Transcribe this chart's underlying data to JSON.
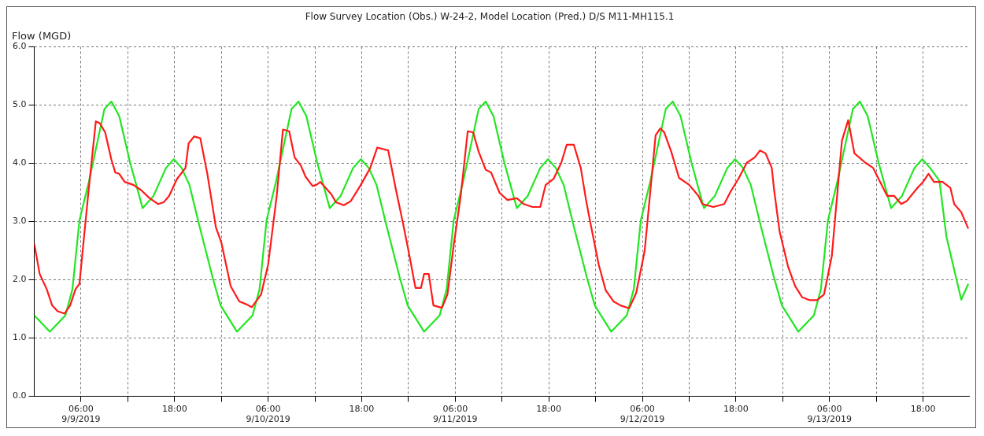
{
  "chart_data": {
    "type": "line",
    "title": "Flow Survey Location (Obs.) W-24-2, Model Location (Pred.) D/S M11-MH115.1",
    "ylabel": "Flow (MGD)",
    "xlim": [
      "2019-09-09T00:00",
      "2019-09-13T23:54"
    ],
    "xticks": [
      {
        "value": "2019-09-09T06:00",
        "label": "06:00\n9/9/2019"
      },
      {
        "value": "2019-09-09T12:00",
        "label": null
      },
      {
        "value": "2019-09-09T18:00",
        "label": "18:00"
      },
      {
        "value": "2019-09-10T00:00",
        "label": null
      },
      {
        "value": "2019-09-10T06:00",
        "label": "06:00\n9/10/2019"
      },
      {
        "value": "2019-09-10T12:00",
        "label": null
      },
      {
        "value": "2019-09-10T18:00",
        "label": "18:00"
      },
      {
        "value": "2019-09-11T00:00",
        "label": null
      },
      {
        "value": "2019-09-11T06:00",
        "label": "06:00\n9/11/2019"
      },
      {
        "value": "2019-09-11T12:00",
        "label": null
      },
      {
        "value": "2019-09-11T18:00",
        "label": "18:00"
      },
      {
        "value": "2019-09-12T00:00",
        "label": null
      },
      {
        "value": "2019-09-12T06:00",
        "label": "06:00\n9/12/2019"
      },
      {
        "value": "2019-09-12T12:00",
        "label": null
      },
      {
        "value": "2019-09-12T18:00",
        "label": "18:00"
      },
      {
        "value": "2019-09-13T00:00",
        "label": null
      },
      {
        "value": "2019-09-13T06:00",
        "label": "06:00\n9/13/2019"
      },
      {
        "value": "2019-09-13T12:00",
        "label": null
      },
      {
        "value": "2019-09-13T18:00",
        "label": "18:00"
      }
    ],
    "ylim": [
      0,
      6
    ],
    "yticks": [
      {
        "value": 0,
        "label": "0.0"
      },
      {
        "value": 1,
        "label": "1.0"
      },
      {
        "value": 2,
        "label": "2.0"
      },
      {
        "value": 3,
        "label": "3.0"
      },
      {
        "value": 4,
        "label": "4.0"
      },
      {
        "value": 5,
        "label": "5.0"
      },
      {
        "value": 6,
        "label": "6.0"
      }
    ],
    "grid": true,
    "legend": false,
    "marker": "none",
    "line_style": "solid",
    "series": [
      {
        "color": "#ff1a1a",
        "x": [
          "2019-09-09T00:00",
          "2019-09-09T00:42",
          "2019-09-09T01:36",
          "2019-09-09T02:18",
          "2019-09-09T03:00",
          "2019-09-09T03:54",
          "2019-09-09T04:36",
          "2019-09-09T05:18",
          "2019-09-09T05:48",
          "2019-09-09T06:54",
          "2019-09-09T07:54",
          "2019-09-09T08:24",
          "2019-09-09T09:06",
          "2019-09-09T09:54",
          "2019-09-09T10:24",
          "2019-09-09T10:54",
          "2019-09-09T11:36",
          "2019-09-09T12:42",
          "2019-09-09T13:42",
          "2019-09-09T14:48",
          "2019-09-09T15:54",
          "2019-09-09T16:36",
          "2019-09-09T17:18",
          "2019-09-09T18:18",
          "2019-09-09T19:24",
          "2019-09-09T19:48",
          "2019-09-09T20:30",
          "2019-09-09T21:18",
          "2019-09-09T22:12",
          "2019-09-09T23:18",
          "2019-09-10T00:00",
          "2019-09-10T01:12",
          "2019-09-10T02:18",
          "2019-09-10T03:12",
          "2019-09-10T03:54",
          "2019-09-10T05:06",
          "2019-09-10T06:00",
          "2019-09-10T07:06",
          "2019-09-10T07:54",
          "2019-09-10T08:42",
          "2019-09-10T09:24",
          "2019-09-10T10:12",
          "2019-09-10T10:48",
          "2019-09-10T11:42",
          "2019-09-10T12:12",
          "2019-09-10T12:42",
          "2019-09-10T14:06",
          "2019-09-10T14:42",
          "2019-09-10T15:42",
          "2019-09-10T16:36",
          "2019-09-10T17:48",
          "2019-09-10T19:06",
          "2019-09-10T20:00",
          "2019-09-10T21:24",
          "2019-09-10T22:24",
          "2019-09-10T23:18",
          "2019-09-11T00:00",
          "2019-09-11T00:54",
          "2019-09-11T01:36",
          "2019-09-11T02:00",
          "2019-09-11T02:36",
          "2019-09-11T03:12",
          "2019-09-11T04:18",
          "2019-09-11T05:00",
          "2019-09-11T05:48",
          "2019-09-11T06:42",
          "2019-09-11T07:36",
          "2019-09-11T08:18",
          "2019-09-11T09:00",
          "2019-09-11T09:54",
          "2019-09-11T10:36",
          "2019-09-11T11:42",
          "2019-09-11T12:42",
          "2019-09-11T13:54",
          "2019-09-11T14:48",
          "2019-09-11T15:54",
          "2019-09-11T16:54",
          "2019-09-11T17:36",
          "2019-09-11T18:36",
          "2019-09-11T19:36",
          "2019-09-11T20:18",
          "2019-09-11T21:12",
          "2019-09-11T22:06",
          "2019-09-11T22:48",
          "2019-09-11T23:18",
          "2019-09-12T00:24",
          "2019-09-12T01:18",
          "2019-09-12T02:18",
          "2019-09-12T03:12",
          "2019-09-12T04:18",
          "2019-09-12T05:12",
          "2019-09-12T06:18",
          "2019-09-12T07:42",
          "2019-09-12T08:18",
          "2019-09-12T08:48",
          "2019-09-12T09:42",
          "2019-09-12T10:42",
          "2019-09-12T12:00",
          "2019-09-12T13:12",
          "2019-09-12T13:42",
          "2019-09-12T15:06",
          "2019-09-12T16:30",
          "2019-09-12T17:18",
          "2019-09-12T18:18",
          "2019-09-12T19:24",
          "2019-09-12T20:24",
          "2019-09-12T21:06",
          "2019-09-12T21:48",
          "2019-09-12T22:36",
          "2019-09-12T22:54",
          "2019-09-12T23:36",
          "2019-09-13T00:42",
          "2019-09-13T01:36",
          "2019-09-13T02:30",
          "2019-09-13T03:30",
          "2019-09-13T04:24",
          "2019-09-13T05:18",
          "2019-09-13T06:18",
          "2019-09-13T07:36",
          "2019-09-13T08:24",
          "2019-09-13T09:12",
          "2019-09-13T10:36",
          "2019-09-13T11:36",
          "2019-09-13T12:30",
          "2019-09-13T13:24",
          "2019-09-13T14:18",
          "2019-09-13T15:12",
          "2019-09-13T15:54",
          "2019-09-13T17:18",
          "2019-09-13T18:00",
          "2019-09-13T18:42",
          "2019-09-13T19:24",
          "2019-09-13T20:30",
          "2019-09-13T21:30",
          "2019-09-13T22:00",
          "2019-09-13T22:54",
          "2019-09-13T23:48"
        ],
        "values": [
          2.62,
          2.1,
          1.84,
          1.56,
          1.46,
          1.42,
          1.56,
          1.84,
          1.93,
          3.44,
          4.72,
          4.69,
          4.53,
          4.06,
          3.84,
          3.82,
          3.68,
          3.63,
          3.54,
          3.4,
          3.3,
          3.33,
          3.44,
          3.73,
          3.92,
          4.34,
          4.46,
          4.43,
          3.82,
          2.9,
          2.64,
          1.89,
          1.63,
          1.58,
          1.53,
          1.75,
          2.26,
          3.44,
          4.58,
          4.55,
          4.1,
          3.96,
          3.77,
          3.61,
          3.63,
          3.68,
          3.47,
          3.33,
          3.28,
          3.35,
          3.61,
          3.92,
          4.27,
          4.22,
          3.54,
          2.97,
          2.5,
          1.86,
          1.86,
          2.1,
          2.1,
          1.56,
          1.52,
          1.75,
          2.59,
          3.44,
          4.55,
          4.53,
          4.2,
          3.89,
          3.84,
          3.49,
          3.37,
          3.4,
          3.3,
          3.25,
          3.25,
          3.63,
          3.73,
          4.01,
          4.32,
          4.32,
          3.92,
          3.35,
          3.0,
          2.26,
          1.82,
          1.63,
          1.56,
          1.51,
          1.77,
          2.5,
          4.48,
          4.6,
          4.53,
          4.2,
          3.75,
          3.63,
          3.44,
          3.3,
          3.25,
          3.3,
          3.51,
          3.73,
          4.01,
          4.1,
          4.22,
          4.17,
          3.92,
          3.54,
          2.83,
          2.22,
          1.89,
          1.7,
          1.65,
          1.65,
          1.75,
          2.41,
          4.39,
          4.74,
          4.17,
          4.01,
          3.92,
          3.68,
          3.44,
          3.44,
          3.3,
          3.35,
          3.58,
          3.68,
          3.82,
          3.68,
          3.68,
          3.58,
          3.3,
          3.16,
          2.88
        ]
      },
      {
        "color": "#22e622",
        "x": [
          "2019-09-09T00:00",
          "2019-09-09T02:00",
          "2019-09-09T04:00",
          "2019-09-09T04:54",
          "2019-09-09T05:48",
          "2019-09-09T07:00",
          "2019-09-09T09:00",
          "2019-09-09T09:54",
          "2019-09-09T10:54",
          "2019-09-09T12:18",
          "2019-09-09T13:54",
          "2019-09-09T15:18",
          "2019-09-09T16:54",
          "2019-09-09T17:54",
          "2019-09-09T18:54",
          "2019-09-09T19:54",
          "2019-09-09T21:12",
          "2019-09-09T22:54",
          "2019-09-09T23:54",
          "2019-09-10T02:00",
          "2019-09-10T04:00",
          "2019-09-10T04:54",
          "2019-09-10T05:48",
          "2019-09-10T07:00",
          "2019-09-10T09:00",
          "2019-09-10T09:54",
          "2019-09-10T10:54",
          "2019-09-10T12:18",
          "2019-09-10T13:54",
          "2019-09-10T15:18",
          "2019-09-10T16:54",
          "2019-09-10T17:54",
          "2019-09-10T18:54",
          "2019-09-10T19:54",
          "2019-09-10T21:12",
          "2019-09-10T22:54",
          "2019-09-10T23:54",
          "2019-09-11T02:00",
          "2019-09-11T04:00",
          "2019-09-11T04:54",
          "2019-09-11T05:48",
          "2019-09-11T07:00",
          "2019-09-11T09:00",
          "2019-09-11T09:54",
          "2019-09-11T10:54",
          "2019-09-11T12:18",
          "2019-09-11T13:54",
          "2019-09-11T15:18",
          "2019-09-11T16:54",
          "2019-09-11T17:54",
          "2019-09-11T18:54",
          "2019-09-11T19:54",
          "2019-09-11T21:12",
          "2019-09-11T22:54",
          "2019-09-11T23:54",
          "2019-09-12T02:00",
          "2019-09-12T04:00",
          "2019-09-12T04:54",
          "2019-09-12T05:48",
          "2019-09-12T07:00",
          "2019-09-12T09:00",
          "2019-09-12T09:54",
          "2019-09-12T10:54",
          "2019-09-12T12:18",
          "2019-09-12T13:54",
          "2019-09-12T15:18",
          "2019-09-12T16:54",
          "2019-09-12T17:54",
          "2019-09-12T18:54",
          "2019-09-12T19:54",
          "2019-09-12T21:12",
          "2019-09-12T22:54",
          "2019-09-12T23:54",
          "2019-09-13T02:00",
          "2019-09-13T04:00",
          "2019-09-13T04:54",
          "2019-09-13T05:48",
          "2019-09-13T07:00",
          "2019-09-13T09:00",
          "2019-09-13T09:54",
          "2019-09-13T10:54",
          "2019-09-13T12:18",
          "2019-09-13T13:54",
          "2019-09-13T15:18",
          "2019-09-13T16:54",
          "2019-09-13T17:54",
          "2019-09-13T18:54",
          "2019-09-13T20:06",
          "2019-09-13T21:00",
          "2019-09-13T22:54",
          "2019-09-13T23:48"
        ],
        "values": [
          1.39,
          1.11,
          1.39,
          1.84,
          3.02,
          3.68,
          4.93,
          5.06,
          4.81,
          4.01,
          3.23,
          3.44,
          3.92,
          4.07,
          3.92,
          3.63,
          2.92,
          2.03,
          1.56,
          1.11,
          1.39,
          1.84,
          3.02,
          3.68,
          4.93,
          5.06,
          4.81,
          4.01,
          3.23,
          3.44,
          3.92,
          4.07,
          3.92,
          3.63,
          2.92,
          2.03,
          1.56,
          1.11,
          1.39,
          1.84,
          3.02,
          3.68,
          4.93,
          5.06,
          4.81,
          4.01,
          3.23,
          3.44,
          3.92,
          4.07,
          3.92,
          3.63,
          2.92,
          2.03,
          1.56,
          1.11,
          1.39,
          1.84,
          3.02,
          3.68,
          4.93,
          5.06,
          4.81,
          4.01,
          3.23,
          3.44,
          3.92,
          4.07,
          3.92,
          3.63,
          2.92,
          2.03,
          1.56,
          1.11,
          1.39,
          1.84,
          3.02,
          3.68,
          4.93,
          5.06,
          4.81,
          4.01,
          3.23,
          3.44,
          3.92,
          4.07,
          3.92,
          3.7,
          2.74,
          1.66,
          1.93
        ]
      }
    ]
  }
}
